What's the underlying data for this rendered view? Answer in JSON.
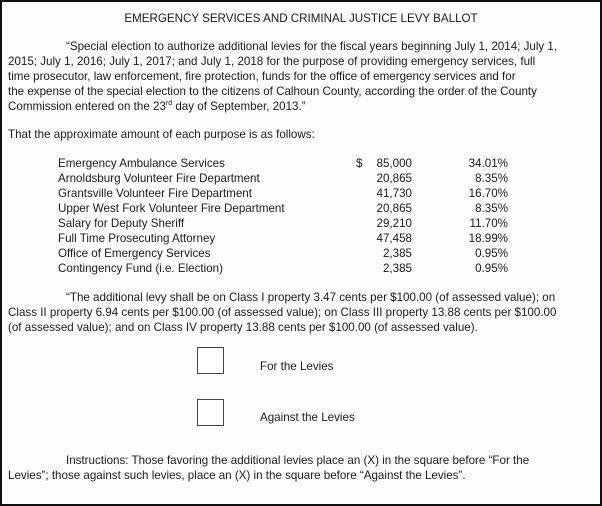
{
  "title": "EMERGENCY SERVICES AND CRIMINAL JUSTICE LEVY BALLOT",
  "intro_lines": [
    "“Special election to authorize additional levies for the fiscal years beginning July 1, 2014; July 1,",
    "2015; July 1, 2016; July 1, 2017; and July 1, 2018 for the purpose of providing emergency services, full",
    "time prosecutor, law enforcement, fire protection, funds for the office of emergency services and for",
    "the expense of the special election to the citizens of Calhoun County, according the order of the County"
  ],
  "intro_last": {
    "pre": "Commission entered on the 23",
    "sup": "rd",
    "post": " day of September, 2013.”"
  },
  "purpose_heading": "That the approximate amount of each purpose is as follows:",
  "currency_symbol": "$",
  "purposes": [
    {
      "name": "Emergency Ambulance Services",
      "amount": "85,000",
      "percent": "34.01%"
    },
    {
      "name": "Arnoldsburg Volunteer Fire Department",
      "amount": "20,865",
      "percent": "8.35%"
    },
    {
      "name": "Grantsville Volunteer Fire Department",
      "amount": "41,730",
      "percent": "16.70%"
    },
    {
      "name": "Upper West Fork Volunteer Fire Department",
      "amount": "20,865",
      "percent": "8.35%"
    },
    {
      "name": "Salary for Deputy Sheriff",
      "amount": "29,210",
      "percent": "11.70%"
    },
    {
      "name": "Full Time Prosecuting Attorney",
      "amount": "47,458",
      "percent": "18.99%"
    },
    {
      "name": "Office of Emergency Services",
      "amount": "2,385",
      "percent": "0.95%"
    },
    {
      "name": "Contingency Fund (i.e. Election)",
      "amount": "2,385",
      "percent": "0.95%"
    }
  ],
  "levy_lines": [
    "“The additional levy shall be on Class I property 3.47 cents per $100.00 (of assessed value); on",
    "Class II property 6.94 cents per $100.00 (of assessed value); on Class III property 13.88 cents per $100.00",
    "(of assessed value); and on Class IV property 13.88 cents per $100.00 (of assessed value)."
  ],
  "options": {
    "for": "For the Levies",
    "against": "Against the Levies"
  },
  "instructions_lines": [
    "Instructions:  Those favoring the additional levies place an (X) in the square before “For the",
    "Levies”; those against such levies, place an (X) in the square before “Against the Levies”."
  ]
}
